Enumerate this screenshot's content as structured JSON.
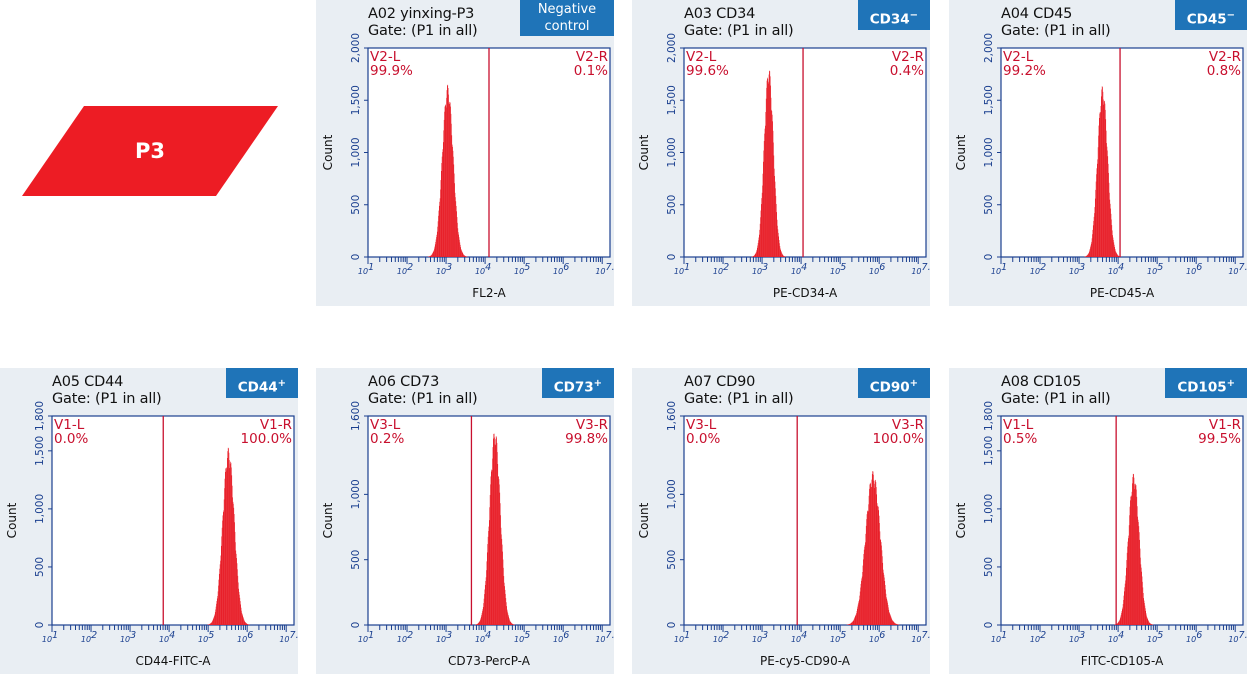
{
  "colors": {
    "hist": "#e8202a",
    "gate": "#c8102e",
    "axis": "#1a3f8f",
    "tag": "#1f74b8",
    "badge": "#ed1c24",
    "panel": "#e9eef3"
  },
  "badge": {
    "label": "P3"
  },
  "chart_data": [
    {
      "type": "histogram",
      "title": "A02 yinxing-P3",
      "gate": "Gate: (P1 in all)",
      "tag": "Negative control",
      "tag_sup": "",
      "xlabel": "FL2-A",
      "ylabel": "Count",
      "xscale": "log",
      "xlim": [
        1,
        7.2
      ],
      "ylim": [
        0,
        2000
      ],
      "yticks": [
        0,
        500,
        1000,
        1500,
        2000
      ],
      "threshold": 4.1,
      "regions": [
        {
          "name": "V2-L",
          "pct": "99.9%"
        },
        {
          "name": "V2-R",
          "pct": "0.1%"
        }
      ],
      "peak": {
        "center": 3.04,
        "sigma": 0.14,
        "height": 1650
      }
    },
    {
      "type": "histogram",
      "title": "A03 CD34",
      "gate": "Gate: (P1 in all)",
      "tag": "CD34",
      "tag_sup": "−",
      "xlabel": "PE-CD34-A",
      "ylabel": "Count",
      "xscale": "log",
      "xlim": [
        1,
        7.2
      ],
      "ylim": [
        0,
        2000
      ],
      "yticks": [
        0,
        500,
        1000,
        1500,
        2000
      ],
      "threshold": 4.05,
      "regions": [
        {
          "name": "V2-L",
          "pct": "99.6%"
        },
        {
          "name": "V2-R",
          "pct": "0.4%"
        }
      ],
      "peak": {
        "center": 3.17,
        "sigma": 0.12,
        "height": 1820
      }
    },
    {
      "type": "histogram",
      "title": "A04 CD45",
      "gate": "Gate: (P1 in all)",
      "tag": "CD45",
      "tag_sup": "−",
      "xlabel": "PE-CD45-A",
      "ylabel": "Count",
      "xscale": "log",
      "xlim": [
        1,
        7.2
      ],
      "ylim": [
        0,
        2000
      ],
      "yticks": [
        0,
        500,
        1000,
        1500,
        2000
      ],
      "threshold": 4.05,
      "regions": [
        {
          "name": "V2-L",
          "pct": "99.2%"
        },
        {
          "name": "V2-R",
          "pct": "0.8%"
        }
      ],
      "peak": {
        "center": 3.6,
        "sigma": 0.13,
        "height": 1640
      }
    },
    {
      "type": "histogram",
      "title": "A05 CD44",
      "gate": "Gate: (P1 in all)",
      "tag": "CD44",
      "tag_sup": "+",
      "xlabel": "CD44-FITC-A",
      "ylabel": "Count",
      "xscale": "log",
      "xlim": [
        1,
        7.2
      ],
      "ylim": [
        0,
        1800
      ],
      "yticks": [
        0,
        500,
        1000,
        1500,
        1800
      ],
      "threshold": 3.85,
      "regions": [
        {
          "name": "V1-L",
          "pct": "0.0%"
        },
        {
          "name": "V1-R",
          "pct": "100.0%"
        }
      ],
      "peak": {
        "center": 5.52,
        "sigma": 0.15,
        "height": 1530
      }
    },
    {
      "type": "histogram",
      "title": "A06 CD73",
      "gate": "Gate: (P1 in all)",
      "tag": "CD73",
      "tag_sup": "+",
      "xlabel": "CD73-PercP-A",
      "ylabel": "Count",
      "xscale": "log",
      "xlim": [
        1,
        7.2
      ],
      "ylim": [
        0,
        1600
      ],
      "yticks": [
        0,
        500,
        1000,
        1600
      ],
      "threshold": 3.65,
      "regions": [
        {
          "name": "V3-L",
          "pct": "0.2%"
        },
        {
          "name": "V3-R",
          "pct": "99.8%"
        }
      ],
      "peak": {
        "center": 4.25,
        "sigma": 0.14,
        "height": 1500
      }
    },
    {
      "type": "histogram",
      "title": "A07 CD90",
      "gate": "Gate: (P1 in all)",
      "tag": "CD90",
      "tag_sup": "+",
      "xlabel": "PE-cy5-CD90-A",
      "ylabel": "Count",
      "xscale": "log",
      "xlim": [
        1,
        7.2
      ],
      "ylim": [
        0,
        1600
      ],
      "yticks": [
        0,
        500,
        1000,
        1600
      ],
      "threshold": 3.9,
      "regions": [
        {
          "name": "V3-L",
          "pct": "0.0%"
        },
        {
          "name": "V3-R",
          "pct": "100.0%"
        }
      ],
      "peak": {
        "center": 5.84,
        "sigma": 0.19,
        "height": 1180
      }
    },
    {
      "type": "histogram",
      "title": "A08 CD105",
      "gate": "Gate: (P1 in all)",
      "tag": "CD105",
      "tag_sup": "+",
      "xlabel": "FITC-CD105-A",
      "ylabel": "Count",
      "xscale": "log",
      "xlim": [
        1,
        7.2
      ],
      "ylim": [
        0,
        1800
      ],
      "yticks": [
        0,
        500,
        1000,
        1500,
        1800
      ],
      "threshold": 3.95,
      "regions": [
        {
          "name": "V1-L",
          "pct": "0.5%"
        },
        {
          "name": "V1-R",
          "pct": "99.5%"
        }
      ],
      "peak": {
        "center": 4.4,
        "sigma": 0.14,
        "height": 1310
      }
    }
  ]
}
